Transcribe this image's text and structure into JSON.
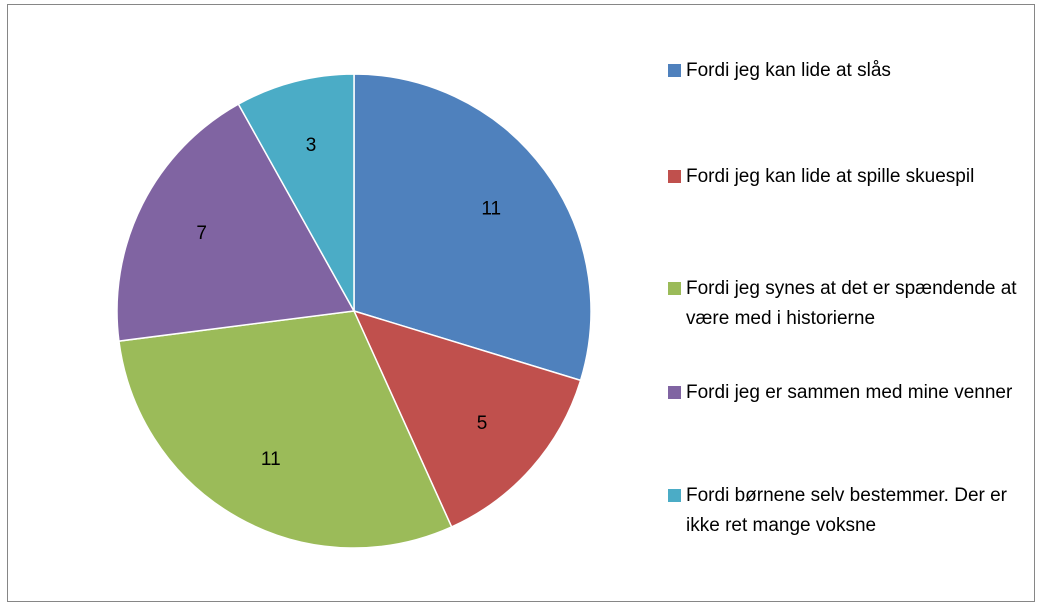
{
  "chart_data": {
    "type": "pie",
    "categories": [
      "Fordi jeg kan lide at slås",
      "Fordi jeg kan lide at spille skuespil",
      "Fordi jeg synes at det er spændende at være med i historierne",
      "Fordi jeg er sammen med mine venner",
      "Fordi børnene selv bestemmer. Der er ikke ret mange voksne"
    ],
    "values": [
      11,
      5,
      11,
      7,
      3
    ],
    "colors": [
      "#4f81bd",
      "#c0504d",
      "#9bbb59",
      "#8064a2",
      "#4bacc6"
    ],
    "legend": "right"
  }
}
